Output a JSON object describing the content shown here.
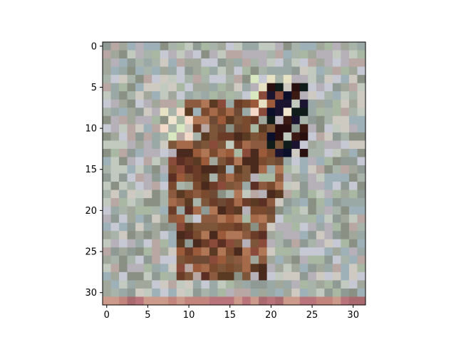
{
  "chart_data": {
    "type": "heatmap",
    "title": "",
    "xlabel": "",
    "ylabel": "",
    "rows": 32,
    "cols": 32,
    "xlim": [
      -0.5,
      31.5
    ],
    "ylim": [
      31.5,
      -0.5
    ],
    "xticks": [
      "0",
      "5",
      "10",
      "15",
      "20",
      "25",
      "30"
    ],
    "yticks": [
      "0",
      "5",
      "10",
      "15",
      "20",
      "25",
      "30"
    ],
    "grid": false,
    "colors": {
      "background": [
        "#8f9a94",
        "#a8b3a9",
        "#c2c9bf",
        "#9aa8a6",
        "#b6b0b8",
        "#a9b8a2",
        "#c6c8d3",
        "#8a9184",
        "#b8a7a2",
        "#9fb1b8",
        "#cfcac1",
        "#a2a79b"
      ],
      "subject": [
        "#5a3a22",
        "#7a4a2e",
        "#9b5a3a",
        "#6b3d29",
        "#8c5a3f",
        "#a46a4a",
        "#4a2a1c",
        "#7d5639",
        "#b07757",
        "#5c2f24",
        "#8a4b3a",
        "#6e4a35"
      ],
      "accent_dark": [
        "#0b0f2a",
        "#1a1430",
        "#2a0f10",
        "#3a1a12",
        "#0f1c1a"
      ],
      "accent_light": [
        "#e8e2c4",
        "#f0e6d0",
        "#d8e8c0",
        "#f2d9c8"
      ],
      "bottom_row": [
        "#b8747a",
        "#c2857d",
        "#a86a6e",
        "#cc9a8a"
      ]
    }
  }
}
